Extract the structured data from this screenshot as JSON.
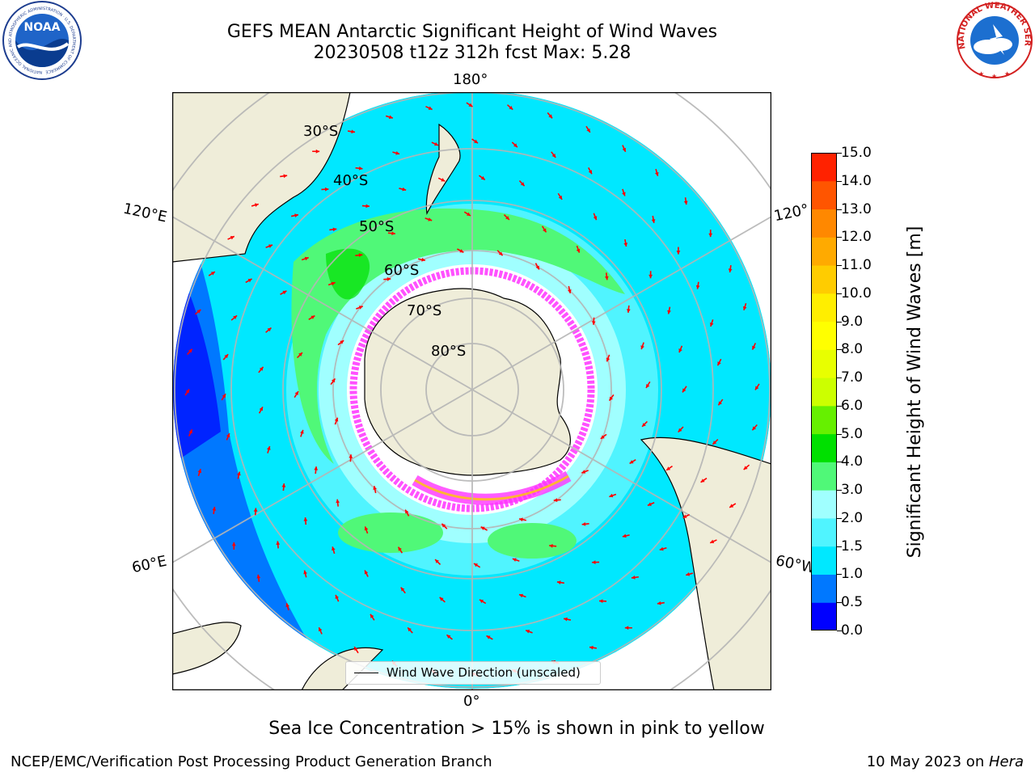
{
  "header": {
    "title_line1": "GEFS MEAN Antarctic Significant Height of Wind Waves",
    "title_line2": "20230508 t12z 312h fcst   Max: 5.28"
  },
  "logos": {
    "noaa": {
      "text": "NOAA",
      "ring_text": "NATIONAL OCEANIC AND ATMOSPHERIC ADMINISTRATION · U.S. DEPARTMENT OF COMMERCE"
    },
    "nws": {
      "ring_text": "NATIONAL WEATHER SERVICE"
    }
  },
  "map": {
    "projection": "south-polar-stereographic",
    "longitude_labels": {
      "top": "180°",
      "bottom": "0°",
      "upper_left": "120°E",
      "upper_right": "120°",
      "lower_left": "60°E",
      "lower_right": "60°W"
    },
    "latitude_labels": [
      "30°S",
      "40°S",
      "50°S",
      "60°S",
      "70°S",
      "80°S"
    ],
    "latitude_circles": [
      -30,
      -40,
      -50,
      -60,
      -70,
      -80
    ],
    "meridians": [
      0,
      60,
      120,
      180,
      240,
      300
    ],
    "legend_label": "Wind Wave Direction (unscaled)",
    "colors": {
      "land": "#efedd9",
      "ice_free": "#ffffff",
      "arrow": "#ff0000",
      "grid": "#b5b5b5",
      "sea_ice": "#ff33ff"
    }
  },
  "colorbar": {
    "label": "Significant Height of Wind Waves [m]",
    "ticks": [
      "0.0",
      "0.5",
      "1.0",
      "1.5",
      "2.0",
      "3.0",
      "4.0",
      "5.0",
      "6.0",
      "7.0",
      "8.0",
      "9.0",
      "10.0",
      "11.0",
      "12.0",
      "13.0",
      "14.0",
      "15.0"
    ],
    "colors": [
      "#0000ff",
      "#0078ff",
      "#00e8ff",
      "#50f4ff",
      "#a0ffff",
      "#50f878",
      "#00e000",
      "#66f000",
      "#ccff00",
      "#e8ff00",
      "#ffff00",
      "#ffee00",
      "#ffcc00",
      "#ffaa00",
      "#ff8800",
      "#ff5500",
      "#ff2200"
    ]
  },
  "caption": "Sea Ice Concentration > 15% is shown in pink to yellow",
  "footer": {
    "left": "NCEP/EMC/Verification Post Processing Product Generation Branch",
    "right_prefix": "10 May 2023 on ",
    "right_system": "Hera"
  }
}
